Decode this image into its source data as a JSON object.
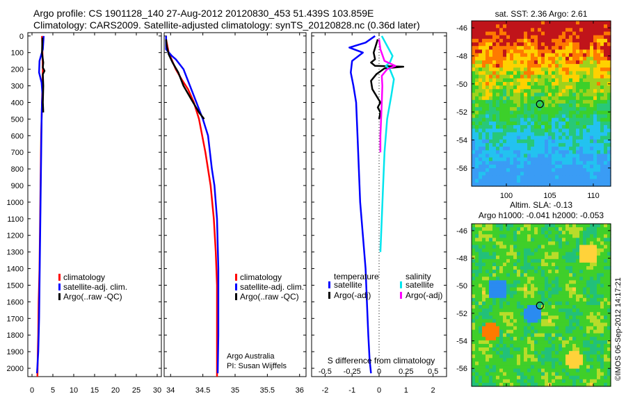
{
  "header": {
    "line1": "Argo profile: CS 1901128_140 27-Aug-2012 20120830_453 51.439S 103.859E",
    "line2": "Climatology: CARS2009. Satellite-adjusted climatology: synTS_20120828.nc (0.36d later)"
  },
  "map_top": {
    "title": "sat. SST: 2.36 Argo: 2.61"
  },
  "map_bottom": {
    "title1": "Altim. SLA: -0.13",
    "title2": "Argo h1000: -0.041 h2000: -0.053"
  },
  "footer": {
    "stamp": "©IMOS 06-Sep-2012 14:17:21"
  },
  "colors": {
    "climatology": "#ff0000",
    "satellite": "#0000ff",
    "argo": "#000000",
    "sal_sat": "#00e5ee",
    "sal_argo": "#ff00ff"
  },
  "chart_data": [
    {
      "type": "line",
      "subject": "temperature profile",
      "y_ticks": [
        0,
        100,
        200,
        300,
        400,
        500,
        600,
        700,
        800,
        900,
        1000,
        1100,
        1200,
        1300,
        1400,
        1500,
        1600,
        1700,
        1800,
        1900,
        2000
      ],
      "x_ticks": [
        0,
        5,
        10,
        15,
        20,
        25,
        30
      ],
      "x_tick_labels": [
        "0",
        "5",
        "10",
        "15",
        "20",
        "25",
        "30"
      ],
      "xlim": [
        -1,
        31
      ],
      "ylim": [
        2050,
        -20
      ],
      "legend": [
        "climatology",
        "satellite-adj. clim.",
        "Argo(..raw -QC)"
      ],
      "series": [
        {
          "name": "climatology",
          "color": "#ff0000",
          "x": [
            2.4,
            2.5,
            2.6,
            2.5,
            2.4,
            2.3,
            2.2,
            2.1,
            2.0,
            1.9,
            1.8,
            1.7,
            1.6,
            1.5,
            1.4,
            1.3
          ],
          "y": [
            0,
            100,
            200,
            300,
            400,
            500,
            600,
            800,
            1000,
            1200,
            1400,
            1500,
            1600,
            1800,
            1900,
            2050
          ]
        },
        {
          "name": "satellite-adj. clim.",
          "color": "#0000ff",
          "x": [
            2.8,
            2.6,
            1.8,
            1.7,
            2.3,
            2.5,
            2.4,
            2.3,
            2.2,
            2.1,
            2.0,
            1.9,
            1.8,
            1.7,
            1.5,
            1.3,
            1.2
          ],
          "y": [
            0,
            80,
            150,
            220,
            280,
            350,
            400,
            500,
            700,
            900,
            1100,
            1300,
            1500,
            1700,
            1900,
            1990,
            2030
          ]
        },
        {
          "name": "Argo(..raw -QC)",
          "color": "#000000",
          "x": [
            2.5,
            2.4,
            2.7,
            2.6,
            3.0,
            2.6,
            2.7,
            2.6,
            2.7
          ],
          "y": [
            10,
            100,
            160,
            190,
            210,
            230,
            300,
            400,
            460
          ]
        }
      ]
    },
    {
      "type": "line",
      "subject": "salinity profile",
      "y_ticks": [
        0,
        100,
        200,
        300,
        400,
        500,
        600,
        700,
        800,
        900,
        1000,
        1100,
        1200,
        1300,
        1400,
        1500,
        1600,
        1700,
        1800,
        1900,
        2000
      ],
      "x_ticks": [
        34,
        34.5,
        35,
        35.5,
        36
      ],
      "x_tick_labels": [
        "34",
        "34.5",
        "35",
        "35.5",
        "36"
      ],
      "xlim": [
        33.9,
        36.1
      ],
      "ylim": [
        2050,
        -20
      ],
      "legend": [
        "climatology",
        "satellite-adj. clim.",
        "Argo(..raw -QC)"
      ],
      "annotation": [
        "Argo Australia",
        "PI: Susan Wijffels"
      ],
      "series": [
        {
          "name": "climatology",
          "color": "#ff0000",
          "x": [
            33.93,
            33.97,
            34.08,
            34.17,
            34.27,
            34.36,
            34.44,
            34.54,
            34.62,
            34.67,
            34.7,
            34.72,
            34.72,
            34.72
          ],
          "y": [
            20,
            100,
            200,
            260,
            320,
            400,
            500,
            700,
            900,
            1100,
            1300,
            1500,
            1800,
            2050
          ]
        },
        {
          "name": "satellite-adj. clim.",
          "color": "#0000ff",
          "x": [
            33.93,
            33.93,
            34.02,
            34.08,
            34.2,
            34.3,
            34.4,
            34.5,
            34.58,
            34.64,
            34.68,
            34.72,
            34.74,
            34.74,
            34.73
          ],
          "y": [
            0,
            80,
            120,
            140,
            200,
            300,
            400,
            500,
            600,
            800,
            900,
            1100,
            1400,
            1800,
            2030
          ]
        },
        {
          "name": "Argo(..raw -QC)",
          "color": "#000000",
          "x": [
            33.93,
            33.94,
            33.97,
            34.03,
            34.12,
            34.2,
            34.32,
            34.44,
            34.52
          ],
          "y": [
            20,
            60,
            110,
            160,
            220,
            300,
            380,
            460,
            500
          ]
        }
      ]
    },
    {
      "type": "line",
      "subject": "difference from climatology",
      "y_ticks": [
        0,
        100,
        200,
        300,
        400,
        500,
        600,
        700,
        800,
        900,
        1000,
        1100,
        1200,
        1300,
        1400,
        1500,
        1600,
        1700,
        1800,
        1900,
        2000
      ],
      "x_ticks": [
        -2,
        -1,
        0,
        1,
        2
      ],
      "x_tick_labels": [
        "-2",
        "-1",
        "0",
        "1",
        "2"
      ],
      "xlabel": "S difference from climatology",
      "secondary_x_ticks": [
        -0.5,
        -0.25,
        0,
        0.25,
        0.5
      ],
      "secondary_x_tick_labels": [
        "-0.5",
        "-0.25",
        "0",
        "0.25",
        "0.5"
      ],
      "xlim": [
        -2.5,
        2.5
      ],
      "ylim": [
        2050,
        -20
      ],
      "legend": {
        "temperature": [
          "satellite",
          "Argo(-adj)"
        ],
        "salinity": [
          "satellite",
          "Argo(-adj)"
        ]
      },
      "series": [
        {
          "name": "temperature satellite",
          "color": "#0000ff",
          "x": [
            -0.15,
            -0.5,
            -1.1,
            -0.6,
            -1.0,
            -1.05,
            -0.95,
            -0.85,
            -0.8,
            -0.75,
            -0.7,
            -0.6,
            -0.5,
            -0.45,
            -0.4,
            -0.35,
            -0.3
          ],
          "y": [
            0,
            40,
            70,
            100,
            150,
            220,
            300,
            400,
            600,
            800,
            1000,
            1200,
            1400,
            1600,
            1800,
            1950,
            2030
          ]
        },
        {
          "name": "temperature Argo(-adj)",
          "color": "#000000",
          "x": [
            -0.05,
            -0.2,
            -0.15,
            -0.3,
            -0.15,
            0.9,
            0.2,
            -0.1,
            -0.3,
            -0.25,
            -0.1,
            0.05,
            -0.05,
            0.05,
            0.0
          ],
          "y": [
            20,
            100,
            140,
            160,
            180,
            185,
            195,
            230,
            270,
            320,
            360,
            400,
            430,
            460,
            500
          ]
        },
        {
          "name": "salinity satellite",
          "color": "#00e5ee",
          "x": [
            0.1,
            0.3,
            0.5,
            0.4,
            0.25,
            0.4,
            0.55,
            0.45,
            0.3,
            0.2,
            0.15,
            0.1,
            0.05
          ],
          "y": [
            0,
            60,
            120,
            160,
            180,
            200,
            260,
            360,
            500,
            700,
            900,
            1100,
            1300
          ]
        },
        {
          "name": "salinity Argo(-adj)",
          "color": "#ff00ff",
          "x": [
            0.0,
            0.05,
            0.2,
            0.6,
            0.3,
            0.1,
            0.12,
            0.1,
            0.05,
            0.05
          ],
          "y": [
            20,
            80,
            150,
            180,
            200,
            240,
            300,
            400,
            600,
            700
          ]
        }
      ]
    },
    {
      "type": "heatmap",
      "subject": "satellite SST map",
      "title": "sat. SST: 2.36 Argo: 2.61",
      "x_ticks": [
        100,
        105,
        110
      ],
      "x_tick_labels": [
        "100",
        "105",
        "110"
      ],
      "y_ticks": [
        -46,
        -48,
        -50,
        -52,
        -54,
        -56
      ],
      "y_tick_labels": [
        "-46",
        "-48",
        "-50",
        "-52",
        "-54",
        "-56"
      ],
      "xlim": [
        96,
        112
      ],
      "ylim": [
        -57.3,
        -45.5
      ],
      "float_position": {
        "lon": 103.859,
        "lat": -51.439
      }
    },
    {
      "type": "heatmap",
      "subject": "altimetry SLA map",
      "title": [
        "Altim. SLA: -0.13",
        "Argo h1000: -0.041 h2000: -0.053"
      ],
      "y_ticks": [
        -46,
        -48,
        -50,
        -52,
        -54,
        -56
      ],
      "y_tick_labels": [
        "-46",
        "-48",
        "-50",
        "-52",
        "-54",
        "-56"
      ],
      "xlim": [
        96,
        112
      ],
      "ylim": [
        -57.3,
        -45.5
      ],
      "float_position": {
        "lon": 103.859,
        "lat": -51.439
      }
    }
  ]
}
